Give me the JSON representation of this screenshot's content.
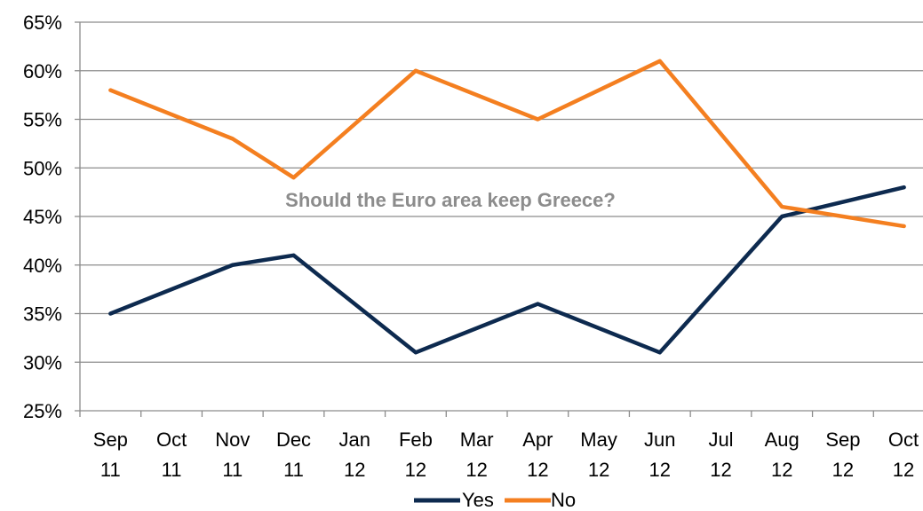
{
  "chart_data": {
    "type": "line",
    "title": "Should the Euro area keep Greece?",
    "xlabel": "",
    "ylabel": "",
    "categories": [
      [
        "Sep",
        "11"
      ],
      [
        "Oct",
        "11"
      ],
      [
        "Nov",
        "11"
      ],
      [
        "Dec",
        "11"
      ],
      [
        "Jan",
        "12"
      ],
      [
        "Feb",
        "12"
      ],
      [
        "Mar",
        "12"
      ],
      [
        "Apr",
        "12"
      ],
      [
        "May",
        "12"
      ],
      [
        "Jun",
        "12"
      ],
      [
        "Jul",
        "12"
      ],
      [
        "Aug",
        "12"
      ],
      [
        "Sep",
        "12"
      ],
      [
        "Oct",
        "12"
      ]
    ],
    "ylim": [
      25,
      65
    ],
    "y_ticks": [
      25,
      30,
      35,
      40,
      45,
      50,
      55,
      60,
      65
    ],
    "y_tick_labels": [
      "25%",
      "30%",
      "35%",
      "40%",
      "45%",
      "50%",
      "55%",
      "60%",
      "65%"
    ],
    "grid": true,
    "legend_position": "bottom",
    "series": [
      {
        "name": "Yes",
        "color": "#0d2a4f",
        "points": [
          [
            0,
            35
          ],
          [
            2,
            40
          ],
          [
            3,
            41
          ],
          [
            5,
            31
          ],
          [
            7,
            36
          ],
          [
            9,
            31
          ],
          [
            11,
            45
          ],
          [
            13,
            48
          ]
        ]
      },
      {
        "name": "No",
        "color": "#f47f20",
        "points": [
          [
            0,
            58
          ],
          [
            2,
            53
          ],
          [
            3,
            49
          ],
          [
            5,
            60
          ],
          [
            7,
            55
          ],
          [
            9,
            61
          ],
          [
            11,
            46
          ],
          [
            13,
            44
          ]
        ]
      }
    ]
  }
}
